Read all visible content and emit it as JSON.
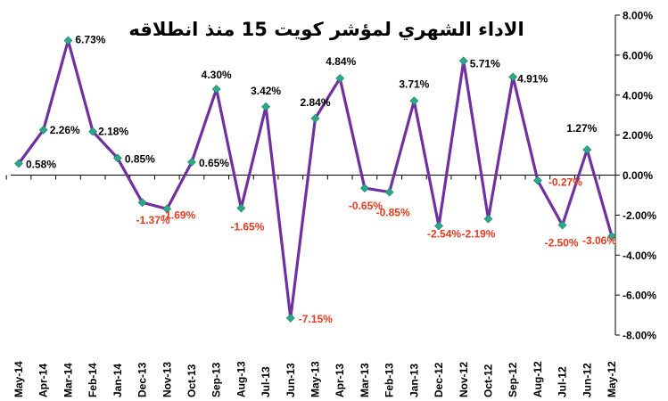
{
  "chart_data": {
    "type": "line",
    "title": "الاداء الشهري لمؤشر كويت 15 منذ انطلاقه",
    "xlabel": "",
    "ylabel": "",
    "categories": [
      "May-14",
      "Apr-14",
      "Mar-14",
      "Feb-14",
      "Jan-14",
      "Dec-13",
      "Nov-13",
      "Oct-13",
      "Sep-13",
      "Aug-13",
      "Jul-13",
      "Jun-13",
      "May-13",
      "Apr-13",
      "Mar-13",
      "Feb-13",
      "Jan-13",
      "Dec-12",
      "Nov-12",
      "Oct-12",
      "Sep-12",
      "Aug-12",
      "Jul-12",
      "Jun-12",
      "May-12"
    ],
    "values": [
      0.58,
      2.26,
      6.73,
      2.18,
      0.85,
      -1.37,
      -1.69,
      0.65,
      4.3,
      -1.65,
      3.42,
      -7.15,
      2.84,
      4.84,
      -0.65,
      -0.85,
      3.71,
      -2.54,
      5.71,
      -2.19,
      4.91,
      -0.27,
      -2.5,
      1.27,
      -3.06
    ],
    "data_labels": [
      "0.58%",
      "2.26%",
      "6.73%",
      "2.18%",
      "0.85%",
      "-1.37%",
      "-1.69%",
      "0.65%",
      "4.30%",
      "-1.65%",
      "3.42%",
      "-7.15%",
      "2.84%",
      "4.84%",
      "-0.65%",
      "-0.85%",
      "3.71%",
      "-2.54%",
      "5.71%",
      "-2.19%",
      "4.91%",
      "-0.27%",
      "-2.50%",
      "1.27%",
      "-3.06%"
    ],
    "y_ticks": [
      "8.00%",
      "6.00%",
      "4.00%",
      "2.00%",
      "0.00%",
      "-2.00%",
      "-4.00%",
      "-6.00%",
      "-8.00%"
    ],
    "ylim": [
      -8,
      8
    ],
    "y_axis_position": "right",
    "grid": false,
    "legend": "none",
    "colors": {
      "line": "#7030A0",
      "marker": "#2BA88A",
      "label_positive": "#000000",
      "label_negative": "#E53A1E",
      "axis": "#000000"
    }
  }
}
